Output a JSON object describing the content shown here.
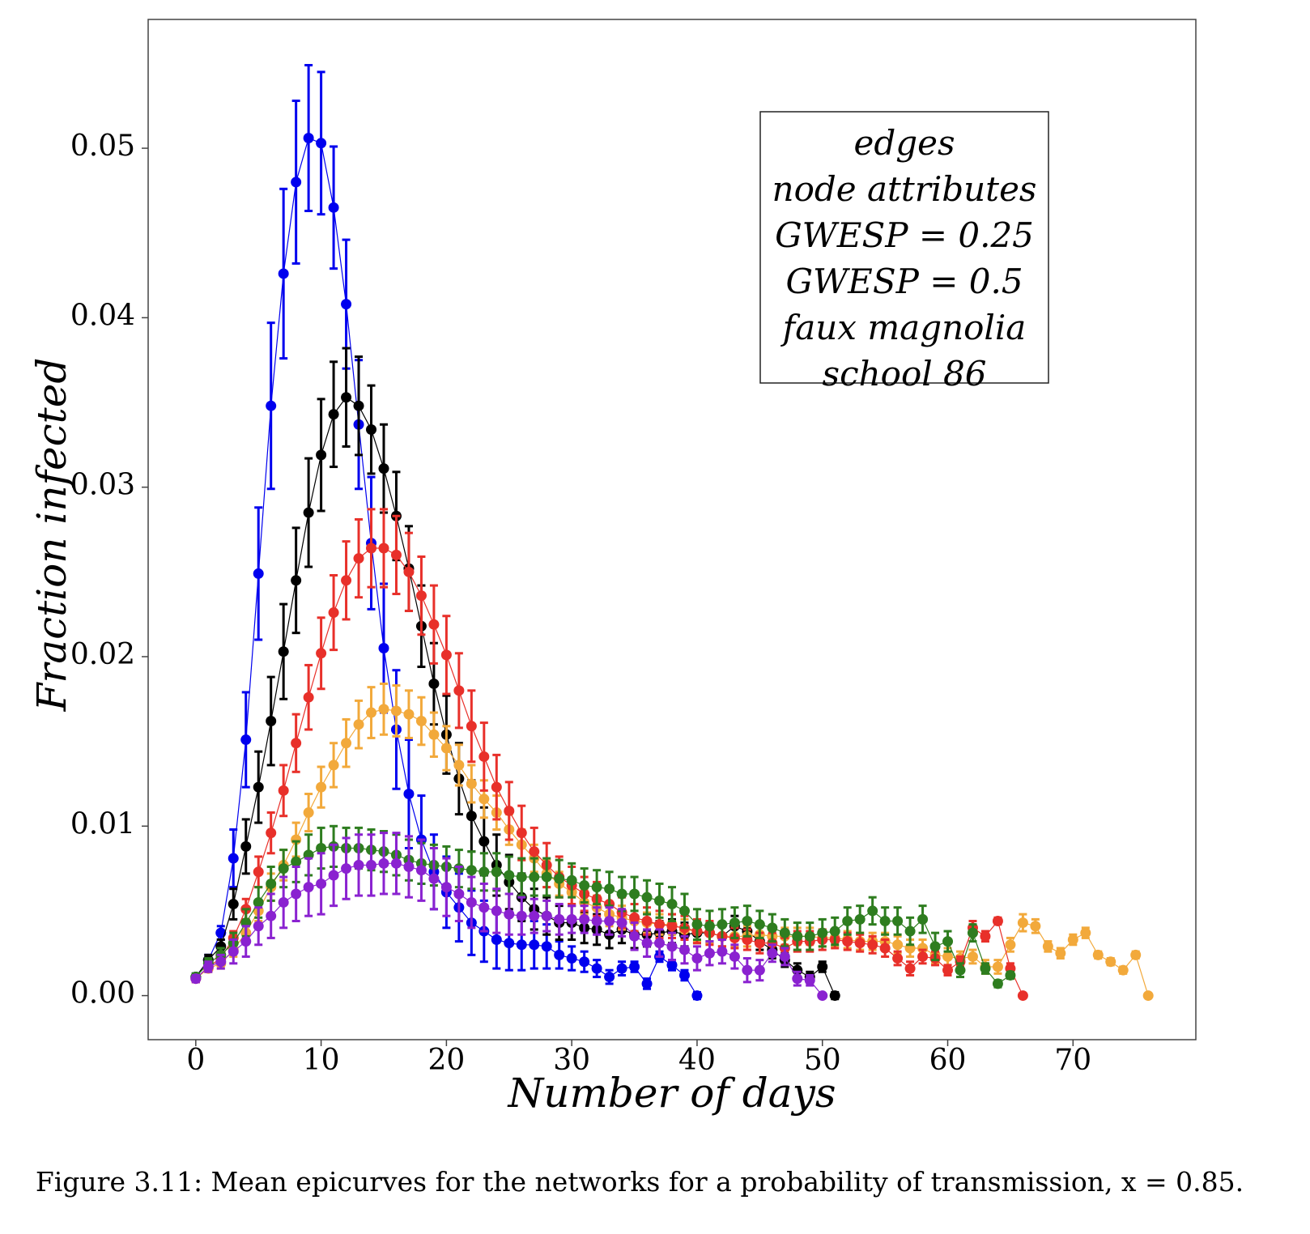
{
  "chart_data": {
    "type": "line",
    "xlabel": "Number of days",
    "ylabel": "Fraction infected",
    "caption": "Figure 3.11: Mean epicurves for the networks for a probability of transmission, x = 0.85.",
    "xlim": [
      -3.8,
      79.8
    ],
    "ylim": [
      -0.0026,
      0.0576
    ],
    "xticks": [
      0,
      10,
      20,
      30,
      40,
      50,
      60,
      70
    ],
    "yticks": [
      {
        "value": 0,
        "label": "0.00"
      },
      0.01,
      0.02,
      0.03,
      0.04,
      0.05
    ],
    "legend": "upper right",
    "x": [
      0,
      1,
      2,
      3,
      4,
      5,
      6,
      7,
      8,
      9,
      10,
      11,
      12,
      13,
      14,
      15,
      16,
      17,
      18,
      19,
      20,
      21,
      22,
      23,
      24,
      25,
      26,
      27,
      28,
      29,
      30,
      31,
      32,
      33,
      34,
      35,
      36,
      37,
      38,
      39,
      40,
      41,
      42,
      43,
      44,
      45,
      46,
      47,
      48,
      49,
      50,
      51,
      52,
      53,
      54,
      55,
      56,
      57,
      58,
      59,
      60,
      61,
      62,
      63,
      64,
      65,
      66,
      67,
      68,
      69,
      70,
      71,
      72,
      73,
      74,
      75,
      76
    ],
    "series": [
      {
        "name": "edges",
        "color": "#f2a93b",
        "values": [
          0.001,
          0.0016,
          0.0019,
          0.0027,
          0.0037,
          0.005,
          0.0064,
          0.0077,
          0.0092,
          0.0108,
          0.0123,
          0.0136,
          0.0149,
          0.016,
          0.0167,
          0.0169,
          0.0168,
          0.0166,
          0.0162,
          0.0154,
          0.0146,
          0.0136,
          0.0125,
          0.0116,
          0.0108,
          0.0098,
          0.0089,
          0.0081,
          0.0072,
          0.0066,
          0.0061,
          0.0055,
          0.0052,
          0.0048,
          0.0046,
          0.0044,
          0.0043,
          0.0042,
          0.0042,
          0.0039,
          0.0038,
          0.0037,
          0.0035,
          0.0035,
          0.0035,
          0.0036,
          0.0035,
          0.0035,
          0.0035,
          0.0035,
          0.0034,
          0.0034,
          0.0033,
          0.0032,
          0.0032,
          0.0032,
          0.003,
          0.0028,
          0.0028,
          0.0024,
          0.0023,
          0.0022,
          0.0023,
          0.0017,
          0.0017,
          0.003,
          0.0043,
          0.0041,
          0.0029,
          0.0025,
          0.0033,
          0.0037,
          0.0024,
          0.002,
          0.0015,
          0.0024,
          0
        ],
        "errors": [
          0.0002,
          0.0002,
          0.0003,
          0.0004,
          0.0005,
          0.0006,
          0.0008,
          0.0009,
          0.001,
          0.0011,
          0.0012,
          0.0013,
          0.0014,
          0.0014,
          0.0015,
          0.0015,
          0.0015,
          0.0014,
          0.0014,
          0.0013,
          0.0013,
          0.0012,
          0.0011,
          0.0011,
          0.001,
          0.0009,
          0.0009,
          0.0008,
          0.0008,
          0.0007,
          0.0007,
          0.0007,
          0.0007,
          0.0007,
          0.0007,
          0.0006,
          0.0006,
          0.0006,
          0.0006,
          0.0006,
          0.0006,
          0.0006,
          0.0006,
          0.0006,
          0.0006,
          0.0005,
          0.0005,
          0.0005,
          0.0005,
          0.0005,
          0.0005,
          0.0005,
          0.0005,
          0.0005,
          0.0005,
          0.0005,
          0.0005,
          0.0005,
          0.0005,
          0.0005,
          0.0005,
          0.0004,
          0.0004,
          0.0004,
          0.0004,
          0.0004,
          0.0005,
          0.0004,
          0.0003,
          0.0003,
          0.0003,
          0.0003,
          0.0002,
          0.0002,
          0.0002,
          0.0002,
          0.0001
        ]
      },
      {
        "name": "node attributes",
        "color": "#e8302a",
        "values": [
          0.001,
          0.0017,
          0.0022,
          0.0034,
          0.0051,
          0.0073,
          0.0096,
          0.0121,
          0.0149,
          0.0176,
          0.0202,
          0.0226,
          0.0245,
          0.0258,
          0.0264,
          0.0264,
          0.026,
          0.025,
          0.0236,
          0.0219,
          0.0201,
          0.018,
          0.0159,
          0.0141,
          0.0123,
          0.0109,
          0.0096,
          0.0085,
          0.0077,
          0.007,
          0.0065,
          0.006,
          0.0057,
          0.0054,
          0.0049,
          0.0046,
          0.0044,
          0.0042,
          0.0041,
          0.004,
          0.0038,
          0.0037,
          0.0035,
          0.0034,
          0.0033,
          0.0031,
          0.0031,
          0.0028,
          0.0032,
          0.0032,
          0.0033,
          0.0033,
          0.0032,
          0.0031,
          0.003,
          0.0028,
          0.0022,
          0.0016,
          0.0023,
          0.0022,
          0.0015,
          0.002,
          0.004,
          0.0035,
          0.0044,
          0.0016,
          0,
          null,
          null,
          null,
          null,
          null,
          null,
          null,
          null,
          null,
          null
        ],
        "errors": [
          0.0002,
          0.0002,
          0.0002,
          0.0004,
          0.0006,
          0.0009,
          0.0012,
          0.0015,
          0.0017,
          0.0019,
          0.0021,
          0.0022,
          0.0023,
          0.0023,
          0.0023,
          0.0023,
          0.0023,
          0.0023,
          0.0023,
          0.0023,
          0.0023,
          0.0022,
          0.0021,
          0.002,
          0.0019,
          0.0017,
          0.0016,
          0.0014,
          0.0013,
          0.0012,
          0.0011,
          0.001,
          0.001,
          0.0009,
          0.0009,
          0.0008,
          0.0008,
          0.0008,
          0.0007,
          0.0007,
          0.0007,
          0.0007,
          0.0006,
          0.0006,
          0.0006,
          0.0006,
          0.0006,
          0.0006,
          0.0006,
          0.0006,
          0.0006,
          0.0005,
          0.0005,
          0.0005,
          0.0005,
          0.0005,
          0.0004,
          0.0004,
          0.0004,
          0.0004,
          0.0003,
          0.0003,
          0.0004,
          0.0003,
          0.0002,
          0.0003,
          0.0001,
          null,
          null,
          null,
          null,
          null,
          null,
          null,
          null,
          null,
          null
        ]
      },
      {
        "name": "GWESP = 0.25",
        "color": "#0000ee",
        "values": [
          0.0011,
          0.0021,
          0.0037,
          0.0081,
          0.0151,
          0.0249,
          0.0348,
          0.0426,
          0.048,
          0.0506,
          0.0503,
          0.0465,
          0.0408,
          0.0337,
          0.0267,
          0.0205,
          0.0157,
          0.0119,
          0.0092,
          0.0073,
          0.0061,
          0.0052,
          0.0043,
          0.0038,
          0.0033,
          0.0031,
          0.003,
          0.003,
          0.0029,
          0.0024,
          0.0022,
          0.002,
          0.0016,
          0.0011,
          0.0016,
          0.0017,
          0.0007,
          0.0023,
          0.0018,
          0.0012,
          0,
          null,
          null,
          null,
          null,
          null,
          null,
          null,
          null,
          null,
          null,
          null,
          null,
          null,
          null,
          null,
          null,
          null,
          null,
          null,
          null,
          null,
          null,
          null,
          null,
          null,
          null,
          null,
          null,
          null,
          null,
          null,
          null,
          null,
          null,
          null,
          null
        ],
        "errors": [
          0.0002,
          0.0003,
          0.0004,
          0.0017,
          0.0028,
          0.0039,
          0.0049,
          0.005,
          0.0048,
          0.0043,
          0.0042,
          0.0036,
          0.0038,
          0.0038,
          0.0039,
          0.0038,
          0.0035,
          0.0032,
          0.0026,
          0.0022,
          0.0021,
          0.002,
          0.0019,
          0.0018,
          0.0017,
          0.0016,
          0.0015,
          0.0014,
          0.0013,
          0.0008,
          0.0007,
          0.0006,
          0.0005,
          0.0004,
          0.0004,
          0.0003,
          0.0003,
          0.0003,
          0.0003,
          0.0003,
          0.0002,
          null,
          null,
          null,
          null,
          null,
          null,
          null,
          null,
          null,
          null,
          null,
          null,
          null,
          null,
          null,
          null,
          null,
          null,
          null,
          null,
          null,
          null,
          null,
          null,
          null,
          null,
          null,
          null,
          null,
          null,
          null,
          null,
          null,
          null,
          null,
          null
        ]
      },
      {
        "name": "GWESP = 0.5",
        "color": "#000000",
        "values": [
          0.0011,
          0.0021,
          0.0029,
          0.0054,
          0.0088,
          0.0123,
          0.0162,
          0.0203,
          0.0245,
          0.0285,
          0.0319,
          0.0343,
          0.0353,
          0.0348,
          0.0334,
          0.0311,
          0.0283,
          0.0252,
          0.0218,
          0.0184,
          0.0154,
          0.0128,
          0.0106,
          0.0091,
          0.0077,
          0.0067,
          0.0058,
          0.0051,
          0.0047,
          0.0043,
          0.0043,
          0.004,
          0.0039,
          0.0036,
          0.0039,
          0.0036,
          0.0036,
          0.0037,
          0.0038,
          0.0036,
          0.0037,
          0.0037,
          0.0035,
          0.0041,
          0.0038,
          0.0032,
          0.0027,
          0.0021,
          0.0015,
          0.0011,
          0.0017,
          0,
          null,
          null,
          null,
          null,
          null,
          null,
          null,
          null,
          null,
          null,
          null,
          null,
          null,
          null,
          null,
          null,
          null,
          null,
          null,
          null,
          null,
          null,
          null,
          null,
          null
        ],
        "errors": [
          0.0002,
          0.0003,
          0.0004,
          0.0009,
          0.0016,
          0.0021,
          0.0026,
          0.0028,
          0.0031,
          0.0032,
          0.0033,
          0.0031,
          0.0029,
          0.0029,
          0.0026,
          0.0026,
          0.0026,
          0.0025,
          0.0024,
          0.0024,
          0.0023,
          0.0021,
          0.0021,
          0.002,
          0.0018,
          0.0016,
          0.0014,
          0.0012,
          0.0011,
          0.001,
          0.001,
          0.0009,
          0.0009,
          0.0008,
          0.0008,
          0.0008,
          0.0007,
          0.0007,
          0.0007,
          0.0007,
          0.0006,
          0.0006,
          0.0006,
          0.0006,
          0.0006,
          0.0005,
          0.0005,
          0.0004,
          0.0004,
          0.0003,
          0.0003,
          0.0002,
          null,
          null,
          null,
          null,
          null,
          null,
          null,
          null,
          null,
          null,
          null,
          null,
          null,
          null,
          null,
          null,
          null,
          null,
          null,
          null,
          null,
          null,
          null,
          null,
          null
        ]
      },
      {
        "name": "faux magnolia",
        "color": "#2e7d1f",
        "values": [
          0.0011,
          0.0019,
          0.0024,
          0.0031,
          0.0043,
          0.0055,
          0.0066,
          0.0075,
          0.0079,
          0.0083,
          0.0087,
          0.0088,
          0.0087,
          0.0087,
          0.0086,
          0.0085,
          0.0083,
          0.008,
          0.0078,
          0.0077,
          0.0076,
          0.0075,
          0.0074,
          0.0073,
          0.0073,
          0.0071,
          0.007,
          0.007,
          0.007,
          0.0069,
          0.0068,
          0.0065,
          0.0064,
          0.0063,
          0.006,
          0.006,
          0.0058,
          0.0056,
          0.0054,
          0.005,
          0.0042,
          0.0041,
          0.0042,
          0.0043,
          0.0044,
          0.0042,
          0.004,
          0.0037,
          0.0035,
          0.0035,
          0.0037,
          0.0038,
          0.0044,
          0.0045,
          0.005,
          0.0044,
          0.0044,
          0.0038,
          0.0045,
          0.0029,
          0.0032,
          0.0015,
          0.0037,
          0.0016,
          0.0007,
          0.0012,
          null,
          null,
          null,
          null,
          null,
          null,
          null,
          null,
          null,
          null,
          null
        ],
        "errors": [
          0.0002,
          0.0003,
          0.0004,
          0.0006,
          0.0008,
          0.0009,
          0.001,
          0.0011,
          0.0012,
          0.0012,
          0.0012,
          0.0012,
          0.0012,
          0.0012,
          0.0012,
          0.0012,
          0.0012,
          0.0012,
          0.0012,
          0.0012,
          0.0012,
          0.0011,
          0.0011,
          0.0011,
          0.0011,
          0.0011,
          0.0011,
          0.0011,
          0.0011,
          0.0011,
          0.001,
          0.001,
          0.001,
          0.001,
          0.001,
          0.001,
          0.001,
          0.001,
          0.001,
          0.001,
          0.0009,
          0.0009,
          0.0009,
          0.0009,
          0.0009,
          0.0008,
          0.0008,
          0.0008,
          0.0008,
          0.0008,
          0.0008,
          0.0008,
          0.0008,
          0.0008,
          0.0008,
          0.0008,
          0.0008,
          0.0008,
          0.0008,
          0.0008,
          0.0006,
          0.0004,
          0.0005,
          0.0003,
          0.0002,
          0.0002,
          null,
          null,
          null,
          null,
          null,
          null,
          null,
          null,
          null,
          null,
          null
        ]
      },
      {
        "name": "school 86",
        "color": "#8a22d0",
        "values": [
          0.001,
          0.0017,
          0.002,
          0.0026,
          0.0032,
          0.0041,
          0.0047,
          0.0055,
          0.006,
          0.0064,
          0.0066,
          0.0071,
          0.0075,
          0.0077,
          0.0077,
          0.0078,
          0.0078,
          0.0076,
          0.0074,
          0.0069,
          0.0064,
          0.006,
          0.0055,
          0.0052,
          0.005,
          0.0048,
          0.0047,
          0.0047,
          0.0047,
          0.0045,
          0.0045,
          0.0045,
          0.0044,
          0.0044,
          0.0043,
          0.0035,
          0.0031,
          0.0031,
          0.0029,
          0.0027,
          0.0022,
          0.0025,
          0.0026,
          0.0023,
          0.0015,
          0.0015,
          0.0025,
          0.0023,
          0.001,
          0.0009,
          0,
          null,
          null,
          null,
          null,
          null,
          null,
          null,
          null,
          null,
          null,
          null,
          null,
          null,
          null,
          null,
          null,
          null,
          null,
          null,
          null,
          null,
          null,
          null,
          null,
          null,
          null
        ],
        "errors": [
          0.0002,
          0.0003,
          0.0004,
          0.0007,
          0.0009,
          0.0011,
          0.0013,
          0.0015,
          0.0016,
          0.0017,
          0.0018,
          0.0018,
          0.0018,
          0.0018,
          0.0018,
          0.0018,
          0.0018,
          0.0018,
          0.0018,
          0.0018,
          0.0017,
          0.0016,
          0.0015,
          0.0014,
          0.0013,
          0.0012,
          0.0011,
          0.001,
          0.0009,
          0.0009,
          0.0008,
          0.0008,
          0.0008,
          0.0008,
          0.0008,
          0.0008,
          0.0008,
          0.0008,
          0.0008,
          0.0008,
          0.0007,
          0.0007,
          0.0007,
          0.0007,
          0.0007,
          0.0006,
          0.0005,
          0.0005,
          0.0004,
          0.0003,
          0.0001,
          null,
          null,
          null,
          null,
          null,
          null,
          null,
          null,
          null,
          null,
          null,
          null,
          null,
          null,
          null,
          null,
          null,
          null,
          null,
          null,
          null,
          null,
          null,
          null,
          null,
          null
        ]
      }
    ]
  }
}
